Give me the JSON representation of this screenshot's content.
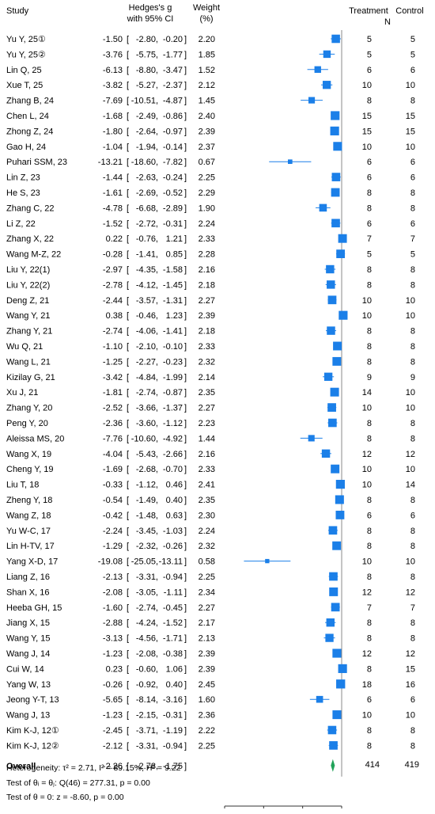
{
  "headers": {
    "study": "Study",
    "effect_line1": "Hedges's g",
    "effect_line2": "with 95% CI",
    "weight_line1": "Weight",
    "weight_line2": "(%)",
    "treatment": "Treatment",
    "n": "N",
    "control": "Control"
  },
  "chart_data": {
    "type": "forest",
    "xlim": [
      -30,
      0
    ],
    "x_ticks": [
      -30,
      -20,
      -10,
      0
    ],
    "x_tick_labels": [
      "-30.000",
      "-20.000",
      "-10.000",
      "0.000"
    ],
    "colors": {
      "marker": "#1b7fe8",
      "diamond": "#22a35a",
      "ci": "#1b7fe8",
      "zero_line": "#888888"
    },
    "studies": [
      {
        "label": "Yu Y, 25①",
        "g": -1.5,
        "lo": -2.8,
        "hi": -0.2,
        "w": 2.2,
        "t": 5,
        "c": 5
      },
      {
        "label": "Yu Y, 25②",
        "g": -3.76,
        "lo": -5.75,
        "hi": -1.77,
        "w": 1.85,
        "t": 5,
        "c": 5
      },
      {
        "label": "Lin Q, 25",
        "g": -6.13,
        "lo": -8.8,
        "hi": -3.47,
        "w": 1.52,
        "t": 6,
        "c": 6
      },
      {
        "label": "Xue T, 25",
        "g": -3.82,
        "lo": -5.27,
        "hi": -2.37,
        "w": 2.12,
        "t": 10,
        "c": 10
      },
      {
        "label": "Zhang B, 24",
        "g": -7.69,
        "lo": -10.51,
        "hi": -4.87,
        "w": 1.45,
        "t": 8,
        "c": 8
      },
      {
        "label": "Chen L, 24",
        "g": -1.68,
        "lo": -2.49,
        "hi": -0.86,
        "w": 2.4,
        "t": 15,
        "c": 15
      },
      {
        "label": "Zhong Z, 24",
        "g": -1.8,
        "lo": -2.64,
        "hi": -0.97,
        "w": 2.39,
        "t": 15,
        "c": 15
      },
      {
        "label": "Gao H, 24",
        "g": -1.04,
        "lo": -1.94,
        "hi": -0.14,
        "w": 2.37,
        "t": 10,
        "c": 10
      },
      {
        "label": "Puhari SSM, 23",
        "g": -13.21,
        "lo": -18.6,
        "hi": -7.82,
        "w": 0.67,
        "t": 6,
        "c": 6
      },
      {
        "label": "Lin Z, 23",
        "g": -1.44,
        "lo": -2.63,
        "hi": -0.24,
        "w": 2.25,
        "t": 6,
        "c": 6
      },
      {
        "label": "He S, 23",
        "g": -1.61,
        "lo": -2.69,
        "hi": -0.52,
        "w": 2.29,
        "t": 8,
        "c": 8
      },
      {
        "label": "Zhang C, 22",
        "g": -4.78,
        "lo": -6.68,
        "hi": -2.89,
        "w": 1.9,
        "t": 8,
        "c": 8
      },
      {
        "label": "Li Z, 22",
        "g": -1.52,
        "lo": -2.72,
        "hi": -0.31,
        "w": 2.24,
        "t": 6,
        "c": 6
      },
      {
        "label": "Zhang X, 22",
        "g": 0.22,
        "lo": -0.76,
        "hi": 1.21,
        "w": 2.33,
        "t": 7,
        "c": 7
      },
      {
        "label": "Wang M-Z, 22",
        "g": -0.28,
        "lo": -1.41,
        "hi": 0.85,
        "w": 2.28,
        "t": 5,
        "c": 5
      },
      {
        "label": "Liu Y, 22(1)",
        "g": -2.97,
        "lo": -4.35,
        "hi": -1.58,
        "w": 2.16,
        "t": 8,
        "c": 8
      },
      {
        "label": "Liu Y, 22(2)",
        "g": -2.78,
        "lo": -4.12,
        "hi": -1.45,
        "w": 2.18,
        "t": 8,
        "c": 8
      },
      {
        "label": "Deng Z, 21",
        "g": -2.44,
        "lo": -3.57,
        "hi": -1.31,
        "w": 2.27,
        "t": 10,
        "c": 10
      },
      {
        "label": "Wang Y, 21",
        "g": 0.38,
        "lo": -0.46,
        "hi": 1.23,
        "w": 2.39,
        "t": 10,
        "c": 10
      },
      {
        "label": "Zhang Y, 21",
        "g": -2.74,
        "lo": -4.06,
        "hi": -1.41,
        "w": 2.18,
        "t": 8,
        "c": 8
      },
      {
        "label": "Wu Q, 21",
        "g": -1.1,
        "lo": -2.1,
        "hi": -0.1,
        "w": 2.33,
        "t": 8,
        "c": 8
      },
      {
        "label": "Wang L, 21",
        "g": -1.25,
        "lo": -2.27,
        "hi": -0.23,
        "w": 2.32,
        "t": 8,
        "c": 8
      },
      {
        "label": "Kizilay G, 21",
        "g": -3.42,
        "lo": -4.84,
        "hi": -1.99,
        "w": 2.14,
        "t": 9,
        "c": 9
      },
      {
        "label": "Xu J, 21",
        "g": -1.81,
        "lo": -2.74,
        "hi": -0.87,
        "w": 2.35,
        "t": 14,
        "c": 10
      },
      {
        "label": "Zhang Y, 20",
        "g": -2.52,
        "lo": -3.66,
        "hi": -1.37,
        "w": 2.27,
        "t": 10,
        "c": 10
      },
      {
        "label": "Peng Y, 20",
        "g": -2.36,
        "lo": -3.6,
        "hi": -1.12,
        "w": 2.23,
        "t": 8,
        "c": 8
      },
      {
        "label": "Aleissa MS, 20",
        "g": -7.76,
        "lo": -10.6,
        "hi": -4.92,
        "w": 1.44,
        "t": 8,
        "c": 8
      },
      {
        "label": "Wang X, 19",
        "g": -4.04,
        "lo": -5.43,
        "hi": -2.66,
        "w": 2.16,
        "t": 12,
        "c": 12
      },
      {
        "label": "Cheng Y, 19",
        "g": -1.69,
        "lo": -2.68,
        "hi": -0.7,
        "w": 2.33,
        "t": 10,
        "c": 10
      },
      {
        "label": "Liu T, 18",
        "g": -0.33,
        "lo": -1.12,
        "hi": 0.46,
        "w": 2.41,
        "t": 10,
        "c": 14
      },
      {
        "label": "Zheng Y, 18",
        "g": -0.54,
        "lo": -1.49,
        "hi": 0.4,
        "w": 2.35,
        "t": 8,
        "c": 8
      },
      {
        "label": "Wang Z, 18",
        "g": -0.42,
        "lo": -1.48,
        "hi": 0.63,
        "w": 2.3,
        "t": 6,
        "c": 6
      },
      {
        "label": "Yu W-C, 17",
        "g": -2.24,
        "lo": -3.45,
        "hi": -1.03,
        "w": 2.24,
        "t": 8,
        "c": 8
      },
      {
        "label": "Lin H-TV, 17",
        "g": -1.29,
        "lo": -2.32,
        "hi": -0.26,
        "w": 2.32,
        "t": 8,
        "c": 8
      },
      {
        "label": "Yang X-D, 17",
        "g": -19.08,
        "lo": -25.05,
        "hi": -13.11,
        "w": 0.58,
        "t": 10,
        "c": 10
      },
      {
        "label": "Liang Z, 16",
        "g": -2.13,
        "lo": -3.31,
        "hi": -0.94,
        "w": 2.25,
        "t": 8,
        "c": 8
      },
      {
        "label": "Shan X, 16",
        "g": -2.08,
        "lo": -3.05,
        "hi": -1.11,
        "w": 2.34,
        "t": 12,
        "c": 12
      },
      {
        "label": "Heeba GH, 15",
        "g": -1.6,
        "lo": -2.74,
        "hi": -0.45,
        "w": 2.27,
        "t": 7,
        "c": 7
      },
      {
        "label": "Jiang X, 15",
        "g": -2.88,
        "lo": -4.24,
        "hi": -1.52,
        "w": 2.17,
        "t": 8,
        "c": 8
      },
      {
        "label": "Wang Y, 15",
        "g": -3.13,
        "lo": -4.56,
        "hi": -1.71,
        "w": 2.13,
        "t": 8,
        "c": 8
      },
      {
        "label": "Wang J, 14",
        "g": -1.23,
        "lo": -2.08,
        "hi": -0.38,
        "w": 2.39,
        "t": 12,
        "c": 12
      },
      {
        "label": "Cui W, 14",
        "g": 0.23,
        "lo": -0.6,
        "hi": 1.06,
        "w": 2.39,
        "t": 8,
        "c": 15
      },
      {
        "label": "Yang W, 13",
        "g": -0.26,
        "lo": -0.92,
        "hi": 0.4,
        "w": 2.45,
        "t": 18,
        "c": 16
      },
      {
        "label": "Jeong Y-T, 13",
        "g": -5.65,
        "lo": -8.14,
        "hi": -3.16,
        "w": 1.6,
        "t": 6,
        "c": 6
      },
      {
        "label": "Wang J, 13",
        "g": -1.23,
        "lo": -2.15,
        "hi": -0.31,
        "w": 2.36,
        "t": 10,
        "c": 10
      },
      {
        "label": "Kim K-J, 12①",
        "g": -2.45,
        "lo": -3.71,
        "hi": -1.19,
        "w": 2.22,
        "t": 8,
        "c": 8
      },
      {
        "label": "Kim K-J, 12②",
        "g": -2.12,
        "lo": -3.31,
        "hi": -0.94,
        "w": 2.25,
        "t": 8,
        "c": 8
      }
    ],
    "overall": {
      "label": "Overall",
      "g": -2.26,
      "lo": -2.78,
      "hi": -1.75,
      "t": 414,
      "c": 419
    },
    "stats": {
      "heterogeneity": "Heterogeneity: τ² = 2.71, I² = 89.15%, H² = 9.22",
      "q_test": "Test of θᵢ = θⱼ: Q(46) = 277.31, p = 0.00",
      "z_test": "Test of θ = 0: z = -8.60, p = 0.00"
    }
  }
}
